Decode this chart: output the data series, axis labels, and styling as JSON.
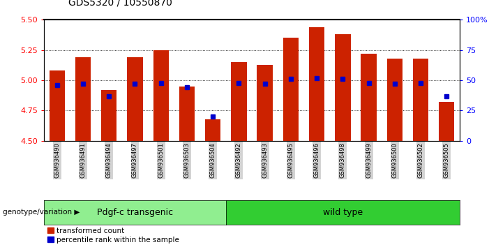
{
  "title": "GDS5320 / 10550870",
  "samples": [
    "GSM936490",
    "GSM936491",
    "GSM936494",
    "GSM936497",
    "GSM936501",
    "GSM936503",
    "GSM936504",
    "GSM936492",
    "GSM936493",
    "GSM936495",
    "GSM936496",
    "GSM936498",
    "GSM936499",
    "GSM936500",
    "GSM936502",
    "GSM936505"
  ],
  "transformed_count": [
    5.08,
    5.19,
    4.92,
    5.19,
    5.25,
    4.95,
    4.68,
    5.15,
    5.13,
    5.35,
    5.44,
    5.38,
    5.22,
    5.18,
    5.18,
    4.82
  ],
  "percentile_rank": [
    46,
    47,
    37,
    47,
    48,
    44,
    20,
    48,
    47,
    51,
    52,
    51,
    48,
    47,
    48,
    37
  ],
  "groups": [
    {
      "label": "Pdgf-c transgenic",
      "start": 0,
      "end": 7
    },
    {
      "label": "wild type",
      "start": 7,
      "end": 16
    }
  ],
  "ylim_left": [
    4.5,
    5.5
  ],
  "ylim_right": [
    0,
    100
  ],
  "yticks_left": [
    4.5,
    4.75,
    5.0,
    5.25,
    5.5
  ],
  "yticks_right": [
    0,
    25,
    50,
    75,
    100
  ],
  "bar_color": "#CC2200",
  "dot_color": "#0000CC",
  "bar_bottom": 4.5,
  "bar_width": 0.6,
  "background_color": "#FFFFFF",
  "plot_bg_color": "#FFFFFF",
  "tick_label_bg": "#D3D3D3",
  "group_colors": [
    "#90EE90",
    "#32CD32"
  ],
  "group_label_fontsize": 9,
  "title_fontsize": 10
}
